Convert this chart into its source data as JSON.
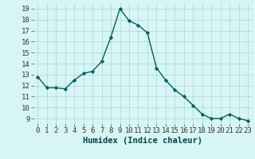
{
  "x": [
    0,
    1,
    2,
    3,
    4,
    5,
    6,
    7,
    8,
    9,
    10,
    11,
    12,
    13,
    14,
    15,
    16,
    17,
    18,
    19,
    20,
    21,
    22,
    23
  ],
  "y": [
    12.8,
    11.8,
    11.8,
    11.7,
    12.5,
    13.1,
    13.3,
    14.2,
    16.4,
    19.0,
    17.9,
    17.5,
    16.8,
    13.6,
    12.5,
    11.6,
    11.0,
    10.2,
    9.4,
    9.0,
    9.0,
    9.4,
    9.0,
    8.8
  ],
  "xlabel": "Humidex (Indice chaleur)",
  "xlim": [
    -0.5,
    23.5
  ],
  "ylim": [
    8.5,
    19.5
  ],
  "yticks": [
    9,
    10,
    11,
    12,
    13,
    14,
    15,
    16,
    17,
    18,
    19
  ],
  "xticks": [
    0,
    1,
    2,
    3,
    4,
    5,
    6,
    7,
    8,
    9,
    10,
    11,
    12,
    13,
    14,
    15,
    16,
    17,
    18,
    19,
    20,
    21,
    22,
    23
  ],
  "line_color": "#006060",
  "marker_color": "#006060",
  "bg_color": "#d8f5f5",
  "grid_color": "#aad4d4",
  "xlabel_fontsize": 7.5,
  "tick_fontsize": 6.5
}
